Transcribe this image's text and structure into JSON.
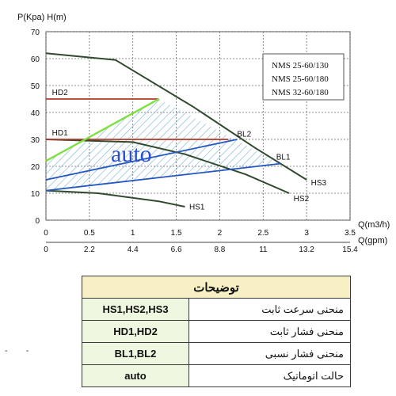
{
  "chart_data": {
    "type": "line",
    "ylabel": "P(Kpa) H(m)",
    "xlabel": "Q(m3/h)",
    "xlabel2": "Q(gpm)",
    "xlim": [
      0,
      3.5
    ],
    "ylim": [
      0,
      70
    ],
    "yticks": [
      "0",
      "10",
      "20",
      "30",
      "40",
      "50",
      "60",
      "70"
    ],
    "xticks": [
      "0",
      "0.5",
      "1",
      "1.5",
      "2",
      "2.5",
      "3",
      "3.5"
    ],
    "xticks_gpm": [
      "0",
      "2.2",
      "4.4",
      "6.6",
      "8.8",
      "11",
      "13.2",
      "15.4"
    ],
    "models": [
      "NMS 25-60/130",
      "NMS 25-60/180",
      "NMS 32-60/180"
    ],
    "auto_label": "auto",
    "series": [
      {
        "name": "HS3",
        "color": "#2f4a2c",
        "x": [
          0,
          0.8,
          1.7,
          2.4,
          3.0
        ],
        "y": [
          62,
          59.5,
          42,
          27,
          15
        ]
      },
      {
        "name": "HS2",
        "color": "#2f4a2c",
        "x": [
          0,
          1.0,
          1.6,
          2.3,
          2.8
        ],
        "y": [
          30,
          29,
          24.5,
          17,
          10
        ]
      },
      {
        "name": "HS1",
        "color": "#2f4a2c",
        "x": [
          0,
          0.6,
          1.3,
          1.6
        ],
        "y": [
          11,
          10,
          7,
          5
        ]
      },
      {
        "name": "HD2",
        "color": "#b23a2a",
        "x": [
          0,
          1.3
        ],
        "y": [
          45,
          45
        ]
      },
      {
        "name": "HD1",
        "color": "#b23a2a",
        "x": [
          0,
          2.1
        ],
        "y": [
          30,
          30
        ]
      },
      {
        "name": "BL2",
        "color": "#2557c0",
        "x": [
          0,
          2.2
        ],
        "y": [
          15,
          30
        ]
      },
      {
        "name": "BL1",
        "color": "#2557c0",
        "x": [
          0,
          2.7
        ],
        "y": [
          11,
          21
        ]
      },
      {
        "name": "auto_line",
        "color": "#7ee040",
        "x": [
          0,
          1.3
        ],
        "y": [
          22,
          45
        ]
      }
    ],
    "auto_region": {
      "x": [
        0,
        1.3,
        2.7,
        0
      ],
      "y": [
        22,
        45,
        21,
        11
      ]
    },
    "grid": true
  },
  "legend_table": {
    "title": "توضیحات",
    "rows": [
      {
        "code": "HS1,HS2,HS3",
        "desc": "منحنی سرعت ثابت"
      },
      {
        "code": "HD1,HD2",
        "desc": "منحنی فشار ثابت"
      },
      {
        "code": "BL1,BL2",
        "desc": "منحنی فشار نسبی"
      },
      {
        "code": "auto",
        "desc": "حالت اتوماتیک"
      }
    ]
  }
}
